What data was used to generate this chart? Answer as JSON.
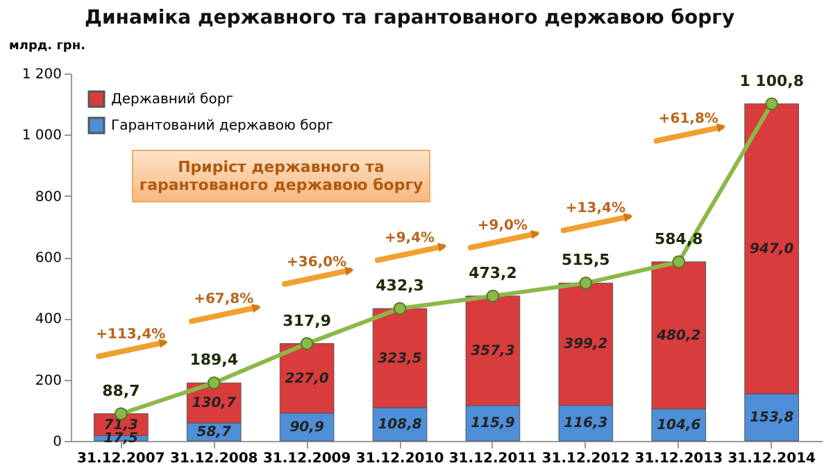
{
  "chart_data": {
    "type": "bar",
    "title": "Динаміка державного та гарантованого державою боргу",
    "ylabel": "млрд. грн.",
    "categories": [
      "31.12.2007",
      "31.12.2008",
      "31.12.2009",
      "31.12.2010",
      "31.12.2011",
      "31.12.2012",
      "31.12.2013",
      "31.12.2014"
    ],
    "stacked": true,
    "legend": "top left",
    "ylim": [
      0,
      1200
    ],
    "yticks": [
      0,
      200,
      400,
      600,
      800,
      {
        "value": 1000,
        "label": "1 000"
      },
      {
        "value": 1200,
        "label": "1 200"
      }
    ],
    "series": [
      {
        "name": "Гарантований державою борг",
        "color": "#4f8fd8",
        "values": [
          17.5,
          58.7,
          90.9,
          108.8,
          115.9,
          116.3,
          104.6,
          153.8
        ],
        "value_labels": [
          "17,5",
          "58,7",
          "90,9",
          "108,8",
          "115,9",
          "116,3",
          "104,6",
          "153,8"
        ]
      },
      {
        "name": "Державний борг",
        "color": "#d93c3c",
        "values": [
          71.3,
          130.7,
          227.0,
          323.5,
          357.3,
          399.2,
          480.2,
          947.0
        ],
        "value_labels": [
          "71,3",
          "130,7",
          "227,0",
          "323,5",
          "357,3",
          "399,2",
          "480,2",
          "947,0"
        ]
      },
      {
        "type": "line",
        "color": "#8cb84a",
        "marker": "circle",
        "line_style": "solid",
        "values": [
          88.7,
          189.4,
          317.9,
          432.3,
          473.2,
          515.5,
          584.8,
          1100.8
        ],
        "value_labels": [
          "88,7",
          "189,4",
          "317,9",
          "432,3",
          "473,2",
          "515,5",
          "584,8",
          "1 100,8"
        ]
      }
    ],
    "annotations": [
      "Приріст державного та гарантованого державою боргу",
      "+113,4%",
      "+67,8%",
      "+36,0%",
      "+9,4%",
      "+9,0%",
      "+13,4%",
      "+61,8%"
    ]
  }
}
